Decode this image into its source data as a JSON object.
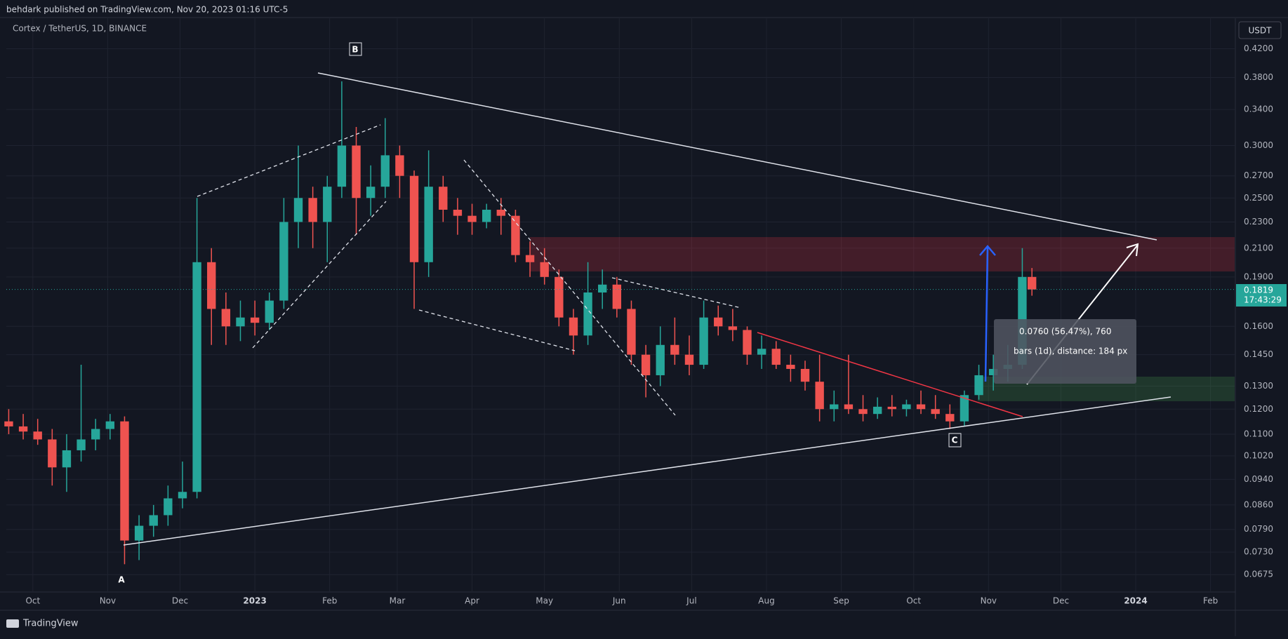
{
  "header": "behdark published on TradingView.com, Nov 20, 2023 01:16 UTC-5",
  "footer": "TradingView",
  "chart_data": {
    "type": "candlestick",
    "title": "Cortex / TetherUS, 1D, BINANCE",
    "currency": "USDT",
    "countdown": "17:43:29",
    "log_scale": true,
    "grid": true,
    "up_color": "#26a69a",
    "down_color": "#ef5350",
    "annotations": [
      "A",
      "B",
      "C"
    ],
    "measure": {
      "change": "0.0760 (56.47%), 760",
      "bars": "bars (1d), distance: 184 px"
    },
    "xlim": [
      -11,
      498
    ],
    "xticks": [
      {
        "value": 0,
        "label": "Oct"
      },
      {
        "value": 31,
        "label": "Nov"
      },
      {
        "value": 61,
        "label": "Dec"
      },
      {
        "value": 92,
        "label": "2023"
      },
      {
        "value": 123,
        "label": "Feb"
      },
      {
        "value": 151,
        "label": "Mar"
      },
      {
        "value": 182,
        "label": "Apr"
      },
      {
        "value": 212,
        "label": "May"
      },
      {
        "value": 243,
        "label": "Jun"
      },
      {
        "value": 273,
        "label": "Jul"
      },
      {
        "value": 304,
        "label": "Aug"
      },
      {
        "value": 335,
        "label": "Sep"
      },
      {
        "value": 365,
        "label": "Oct"
      },
      {
        "value": 396,
        "label": "Nov"
      },
      {
        "value": 426,
        "label": "Dec"
      },
      {
        "value": 457,
        "label": "2024"
      },
      {
        "value": 488,
        "label": "Feb"
      }
    ],
    "ylim": [
      0.0637,
      0.467
    ],
    "yticks": [
      {
        "value": 0.42,
        "label": "0.4200"
      },
      {
        "value": 0.38,
        "label": "0.3800"
      },
      {
        "value": 0.34,
        "label": "0.3400"
      },
      {
        "value": 0.3,
        "label": "0.3000"
      },
      {
        "value": 0.27,
        "label": "0.2700"
      },
      {
        "value": 0.25,
        "label": "0.2500"
      },
      {
        "value": 0.23,
        "label": "0.2300"
      },
      {
        "value": 0.21,
        "label": "0.2100"
      },
      {
        "value": 0.19,
        "label": "0.1900"
      },
      {
        "value": 0.16,
        "label": "0.1600"
      },
      {
        "value": 0.145,
        "label": "0.1450"
      },
      {
        "value": 0.13,
        "label": "0.1300"
      },
      {
        "value": 0.12,
        "label": "0.1200"
      },
      {
        "value": 0.11,
        "label": "0.1100"
      },
      {
        "value": 0.102,
        "label": "0.1020"
      },
      {
        "value": 0.094,
        "label": "0.0940"
      },
      {
        "value": 0.086,
        "label": "0.0860"
      },
      {
        "value": 0.079,
        "label": "0.0790"
      },
      {
        "value": 0.073,
        "label": "0.0730"
      },
      {
        "value": 0.0675,
        "label": "0.0675"
      }
    ],
    "x": [
      -10,
      -4,
      2,
      8,
      14,
      20,
      26,
      32,
      38,
      44,
      50,
      56,
      62,
      68,
      74,
      80,
      86,
      92,
      98,
      104,
      110,
      116,
      122,
      128,
      134,
      140,
      146,
      152,
      158,
      164,
      170,
      176,
      182,
      188,
      194,
      200,
      206,
      212,
      218,
      224,
      230,
      236,
      242,
      248,
      254,
      260,
      266,
      272,
      278,
      284,
      290,
      296,
      302,
      308,
      314,
      320,
      326,
      332,
      338,
      344,
      350,
      356,
      362,
      368,
      374,
      380,
      386,
      392,
      398,
      404,
      410,
      414
    ],
    "open": [
      0.115,
      0.113,
      0.111,
      0.108,
      0.098,
      0.104,
      0.108,
      0.112,
      0.115,
      0.076,
      0.08,
      0.083,
      0.088,
      0.09,
      0.2,
      0.17,
      0.16,
      0.165,
      0.162,
      0.175,
      0.23,
      0.25,
      0.23,
      0.26,
      0.3,
      0.25,
      0.26,
      0.29,
      0.27,
      0.2,
      0.26,
      0.24,
      0.235,
      0.23,
      0.24,
      0.235,
      0.205,
      0.2,
      0.19,
      0.165,
      0.155,
      0.18,
      0.185,
      0.17,
      0.145,
      0.135,
      0.15,
      0.145,
      0.14,
      0.165,
      0.16,
      0.158,
      0.145,
      0.148,
      0.14,
      0.138,
      0.132,
      0.12,
      0.122,
      0.12,
      0.118,
      0.121,
      0.12,
      0.122,
      0.12,
      0.118,
      0.115,
      0.126,
      0.135,
      0.138,
      0.14,
      0.19
    ],
    "high": [
      0.12,
      0.118,
      0.116,
      0.112,
      0.11,
      0.14,
      0.116,
      0.118,
      0.117,
      0.083,
      0.086,
      0.092,
      0.1,
      0.25,
      0.21,
      0.18,
      0.175,
      0.175,
      0.18,
      0.25,
      0.3,
      0.26,
      0.27,
      0.375,
      0.32,
      0.28,
      0.33,
      0.3,
      0.275,
      0.295,
      0.27,
      0.25,
      0.245,
      0.245,
      0.25,
      0.24,
      0.215,
      0.21,
      0.195,
      0.17,
      0.2,
      0.195,
      0.19,
      0.175,
      0.15,
      0.16,
      0.165,
      0.155,
      0.175,
      0.172,
      0.17,
      0.16,
      0.155,
      0.152,
      0.145,
      0.142,
      0.145,
      0.128,
      0.145,
      0.126,
      0.125,
      0.126,
      0.124,
      0.128,
      0.126,
      0.122,
      0.128,
      0.14,
      0.145,
      0.15,
      0.21,
      0.196
    ],
    "low": [
      0.11,
      0.108,
      0.106,
      0.092,
      0.09,
      0.1,
      0.104,
      0.108,
      0.07,
      0.071,
      0.077,
      0.08,
      0.085,
      0.088,
      0.15,
      0.15,
      0.152,
      0.155,
      0.158,
      0.17,
      0.21,
      0.21,
      0.2,
      0.25,
      0.22,
      0.235,
      0.25,
      0.25,
      0.17,
      0.19,
      0.23,
      0.22,
      0.22,
      0.225,
      0.22,
      0.2,
      0.19,
      0.185,
      0.16,
      0.145,
      0.15,
      0.17,
      0.165,
      0.14,
      0.125,
      0.13,
      0.14,
      0.135,
      0.138,
      0.155,
      0.152,
      0.14,
      0.138,
      0.138,
      0.132,
      0.128,
      0.115,
      0.115,
      0.118,
      0.115,
      0.116,
      0.117,
      0.117,
      0.118,
      0.116,
      0.112,
      0.113,
      0.124,
      0.128,
      0.132,
      0.138,
      0.178
    ],
    "close": [
      0.113,
      0.111,
      0.108,
      0.098,
      0.104,
      0.108,
      0.112,
      0.115,
      0.076,
      0.08,
      0.083,
      0.088,
      0.09,
      0.2,
      0.17,
      0.16,
      0.165,
      0.162,
      0.175,
      0.23,
      0.25,
      0.23,
      0.26,
      0.3,
      0.25,
      0.26,
      0.29,
      0.27,
      0.2,
      0.26,
      0.24,
      0.235,
      0.23,
      0.24,
      0.235,
      0.205,
      0.2,
      0.19,
      0.165,
      0.155,
      0.18,
      0.185,
      0.17,
      0.145,
      0.135,
      0.15,
      0.145,
      0.14,
      0.165,
      0.16,
      0.158,
      0.145,
      0.148,
      0.14,
      0.138,
      0.132,
      0.12,
      0.122,
      0.12,
      0.118,
      0.121,
      0.12,
      0.122,
      0.12,
      0.118,
      0.115,
      0.126,
      0.135,
      0.138,
      0.14,
      0.19,
      0.1819
    ]
  }
}
